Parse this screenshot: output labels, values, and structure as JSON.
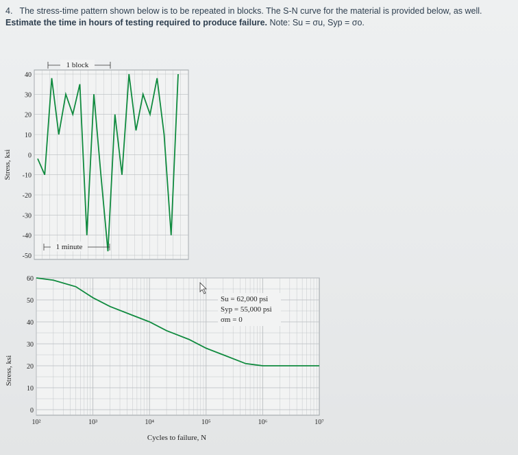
{
  "question": {
    "number": "4.",
    "text_plain": "The stress-time pattern shown below is to be repeated in blocks. The S-N curve for the material is provided below, as well. ",
    "text_bold": "Estimate the time in hours of testing required to produce failure.",
    "text_note": " Note: S",
    "note_rest": "u = σu, Syp = σo."
  },
  "colors": {
    "line": "#0f8a3e",
    "grid": "#b9bdc0",
    "axis_text": "#222222"
  },
  "chart_data": [
    {
      "type": "line",
      "ylabel": "Stress, ksi",
      "ylim": [
        -50,
        40
      ],
      "y_ticks": [
        "40",
        "30",
        "20",
        "10",
        "0",
        "-10",
        "-20",
        "-30",
        "-40",
        "-50"
      ],
      "annotations": [
        "1 block",
        "1 minute"
      ],
      "series": [
        {
          "x": [
            0,
            1,
            2,
            3,
            4,
            5,
            6,
            7,
            8,
            9,
            10,
            11,
            12,
            13,
            14,
            15,
            16,
            17,
            18,
            19,
            20
          ],
          "values": [
            -2,
            -10,
            38,
            10,
            30,
            20,
            35,
            -40,
            30,
            -10,
            -48,
            20,
            -10,
            40,
            12,
            30,
            20,
            38,
            10,
            -40,
            40
          ]
        }
      ]
    },
    {
      "type": "line",
      "ylabel": "Stress, ksi",
      "xlabel": "Cycles to failure, N",
      "x_scale": "log",
      "xlim": [
        100,
        10000000
      ],
      "ylim": [
        0,
        60
      ],
      "x_ticks": [
        "10²",
        "10³",
        "10⁴",
        "10⁵",
        "10⁶",
        "10⁷"
      ],
      "y_ticks": [
        "60",
        "50",
        "40",
        "30",
        "20",
        "10",
        "0"
      ],
      "legend_lines": [
        "Su = 62,000 psi",
        "Syp = 55,000 psi",
        "σm = 0"
      ],
      "series": [
        {
          "x": [
            100,
            200,
            500,
            1000,
            2000,
            5000,
            10000,
            20000,
            50000,
            100000,
            200000,
            500000,
            1000000,
            2000000,
            5000000,
            10000000
          ],
          "values": [
            60,
            59,
            56,
            51,
            47,
            43,
            40,
            36,
            32,
            28,
            25,
            21,
            20,
            20,
            20,
            20
          ]
        }
      ]
    }
  ]
}
